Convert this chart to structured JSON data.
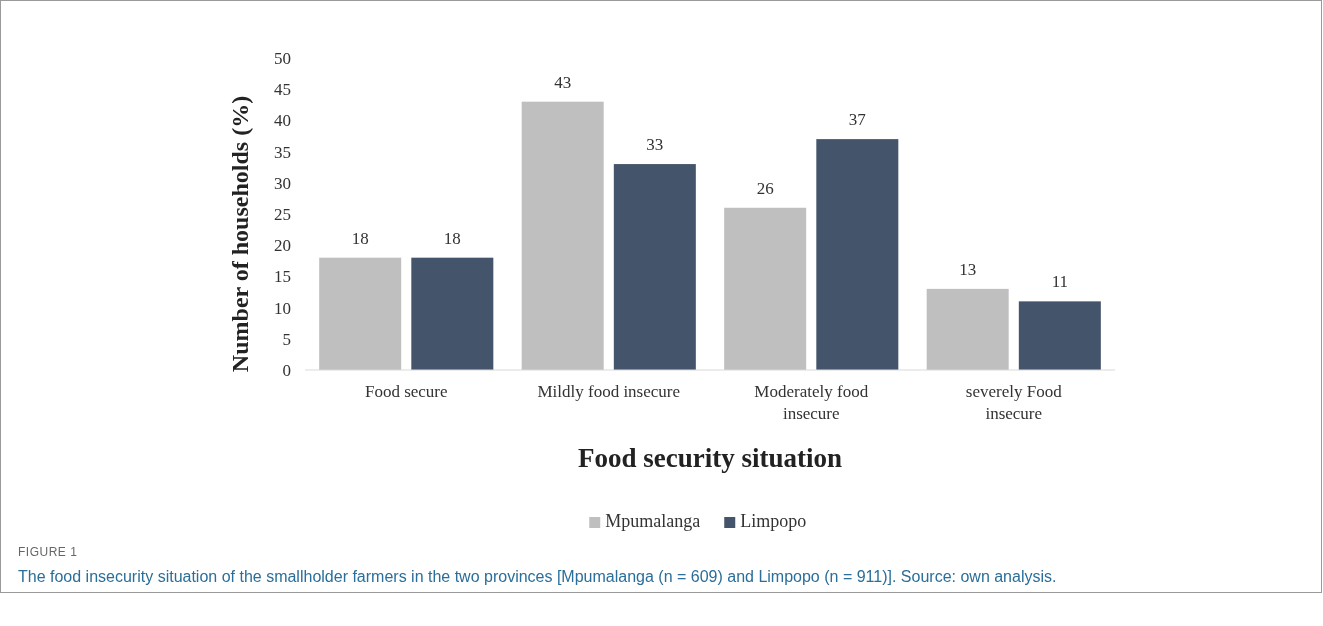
{
  "chart_data": {
    "type": "bar",
    "xlabel": "Food security situation",
    "ylabel": "Number of households (%)",
    "categories": [
      "Food secure",
      "Mildly food insecure",
      "Moderately food insecure",
      "severely Food insecure"
    ],
    "series": [
      {
        "name": "Mpumalanga",
        "color": "#bfbfbf",
        "values": [
          18,
          43,
          26,
          13
        ]
      },
      {
        "name": "Limpopo",
        "color": "#44546a",
        "values": [
          18,
          33,
          37,
          11
        ]
      }
    ],
    "ylim": [
      0,
      50
    ],
    "yticks": [
      0,
      5,
      10,
      15,
      20,
      25,
      30,
      35,
      40,
      45,
      50
    ],
    "grid": false,
    "legend": "bottom",
    "data_labels": true,
    "annotations": [
      "FIGURE 1",
      "The food insecurity situation of the smallholder farmers in the two provinces [Mpumalanga (n = 609) and Limpopo (n = 911)]. Source: own analysis."
    ]
  }
}
